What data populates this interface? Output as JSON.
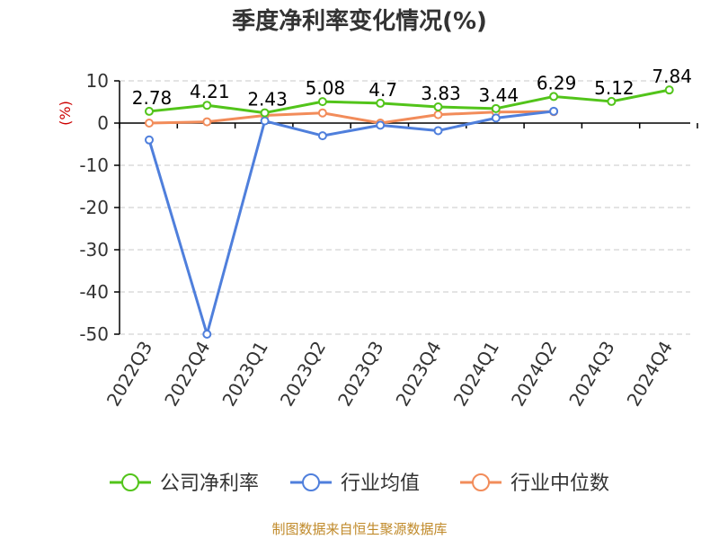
{
  "title": "季度净利率变化情况(%)",
  "source": "制图数据来自恒生聚源数据库",
  "chart_data": {
    "type": "line",
    "title": "季度净利率变化情况(%)",
    "ylabel": "(%)",
    "xlabel": "",
    "categories": [
      "2022Q3",
      "2022Q4",
      "2023Q1",
      "2023Q2",
      "2023Q3",
      "2023Q4",
      "2024Q1",
      "2024Q2",
      "2024Q3",
      "2024Q4"
    ],
    "yticks": [
      10,
      0,
      -10,
      -20,
      -30,
      -40,
      -50
    ],
    "ylim": [
      -50,
      10
    ],
    "grid": true,
    "legend_position": "bottom",
    "series": [
      {
        "name": "公司净利率",
        "color": "#52c41a",
        "values": [
          2.78,
          4.21,
          2.43,
          5.08,
          4.7,
          3.83,
          3.44,
          6.29,
          5.12,
          7.84
        ],
        "labels": [
          "2.78",
          "4.21",
          "2.43",
          "5.08",
          "4.7",
          "3.83",
          "3.44",
          "6.29",
          "5.12",
          "7.84"
        ]
      },
      {
        "name": "行业均值",
        "color": "#4f7fdc",
        "values": [
          -4,
          -50,
          0.5,
          -3,
          -0.5,
          -1.8,
          1.2,
          2.8,
          null,
          null
        ]
      },
      {
        "name": "行业中位数",
        "color": "#f28c5a",
        "values": [
          0,
          0.3,
          1.8,
          2.4,
          0,
          2,
          2.6,
          2.7,
          null,
          null
        ]
      }
    ]
  }
}
